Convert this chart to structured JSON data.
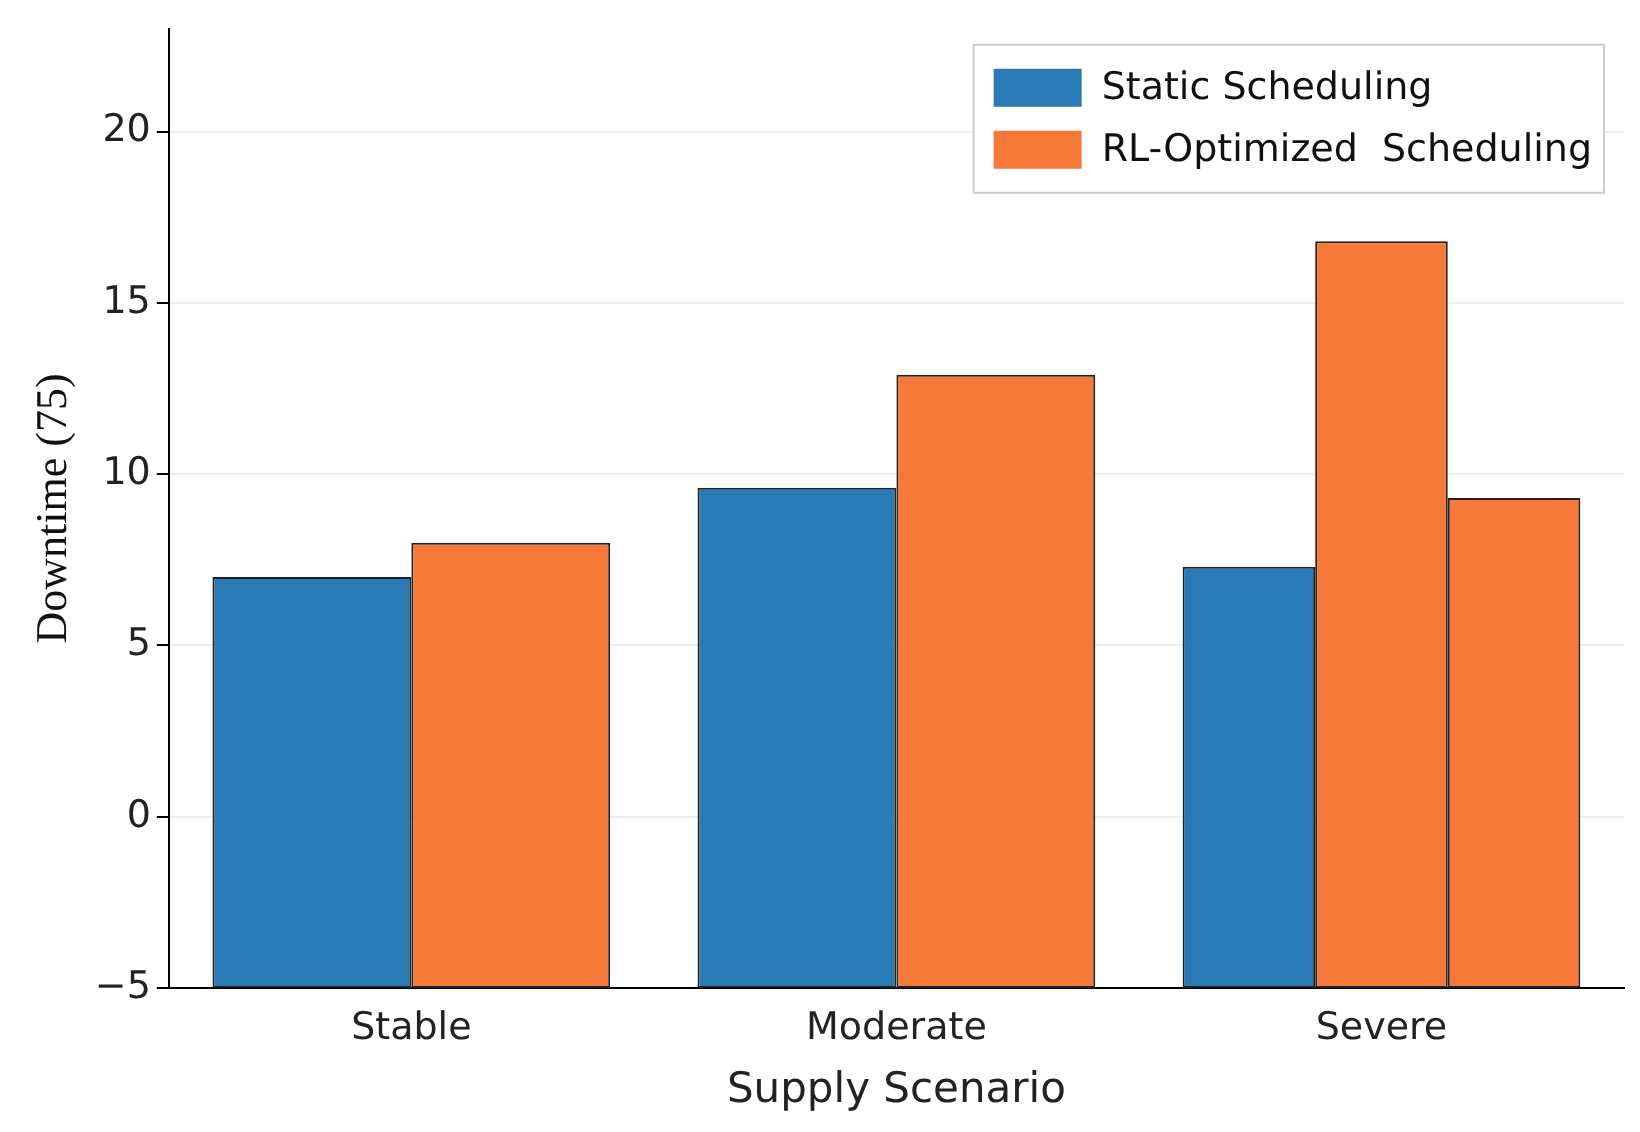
{
  "chart_data": {
    "type": "bar",
    "xlabel": "Supply Scenario",
    "ylabel": "Downtime (75)",
    "categories": [
      "Stable",
      "Moderate",
      "Severe"
    ],
    "series": [
      {
        "name": "Static Scheduling",
        "color": "#2a7ab5",
        "base": [
          -5,
          -5,
          -5
        ],
        "values": [
          12.0,
          14.6,
          12.3
        ]
      },
      {
        "name": "RL-Optimized  Scheduling",
        "color": "#f7793a",
        "base": [
          -5,
          -5,
          -5
        ],
        "values": [
          13.0,
          17.9,
          21.8
        ]
      },
      {
        "color": "#f7793a",
        "base": [
          null,
          null,
          -5
        ],
        "values": [
          null,
          null,
          14.3
        ]
      }
    ],
    "ylim": [
      -5,
      23
    ],
    "yticks": [
      -5,
      0,
      5,
      10,
      15,
      20
    ],
    "grid": "y",
    "legend": "top right"
  }
}
